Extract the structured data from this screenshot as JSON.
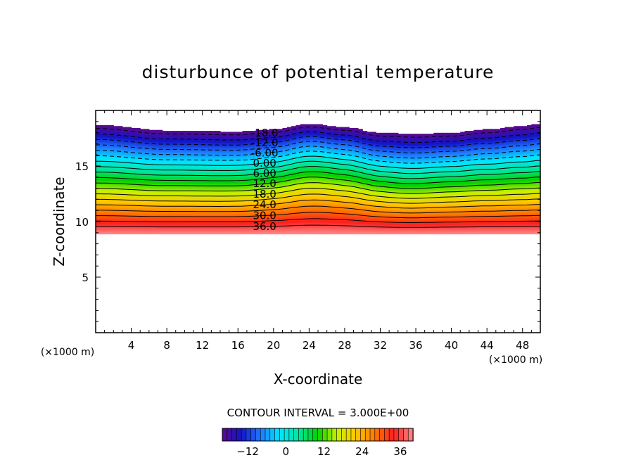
{
  "chart_data": {
    "type": "heatmap",
    "title": "disturbunce of potential temperature",
    "xlabel": "X-coordinate",
    "ylabel": "Z-coordinate",
    "x_unit": "(×1000 m)",
    "y_unit": "(×1000 m)",
    "xlim": [
      0,
      50
    ],
    "ylim": [
      0,
      20
    ],
    "x_ticks": [
      4,
      8,
      12,
      16,
      20,
      24,
      28,
      32,
      36,
      40,
      44,
      48
    ],
    "y_ticks": [
      5,
      10,
      15
    ],
    "contour_interval_text": "CONTOUR INTERVAL = 3.000E+00",
    "contour_interval": 3,
    "value_range": [
      -20,
      40
    ],
    "colorbar_ticks": [
      -12,
      0,
      12,
      24,
      36
    ],
    "colormap": [
      "#5a0a8c",
      "#1414c8",
      "#1e78ff",
      "#00e6ff",
      "#00e6a0",
      "#00d200",
      "#c8f000",
      "#ffc800",
      "#ff7800",
      "#ff1e1e",
      "#ff8c8c"
    ],
    "field_top_profile": {
      "x": [
        0,
        8,
        16,
        20,
        24,
        28,
        32,
        36,
        40,
        44,
        48,
        50
      ],
      "z": [
        18.7,
        18.2,
        18.1,
        18.3,
        18.8,
        18.5,
        18.0,
        17.9,
        18.0,
        18.3,
        18.6,
        18.8
      ]
    },
    "field_bottom_z": 8.9,
    "contour_labels": [
      {
        "text": "-18.0",
        "value": -18
      },
      {
        "text": "-12.0",
        "value": -12
      },
      {
        "text": "-6.00",
        "value": -6
      },
      {
        "text": "0.00",
        "value": 0
      },
      {
        "text": "6.00",
        "value": 6
      },
      {
        "text": "12.0",
        "value": 12
      },
      {
        "text": "18.0",
        "value": 18
      },
      {
        "text": "24.0",
        "value": 24
      },
      {
        "text": "30.0",
        "value": 30
      },
      {
        "text": "36.0",
        "value": 36
      }
    ],
    "contour_label_x": 19
  }
}
